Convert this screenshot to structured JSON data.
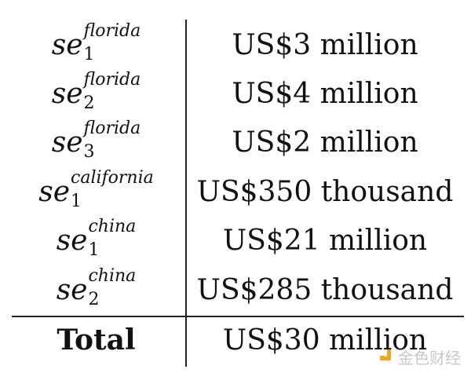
{
  "rows": [
    {
      "symbol": "se",
      "superscript": "florida",
      "subscript": "1",
      "value": "US$3 million"
    },
    {
      "symbol": "se",
      "superscript": "florida",
      "subscript": "2",
      "value": "US$4 million"
    },
    {
      "symbol": "se",
      "superscript": "florida",
      "subscript": "3",
      "value": "US$2 million"
    },
    {
      "symbol": "se",
      "superscript": "california",
      "subscript": "1",
      "value": "US$350 thousand"
    },
    {
      "symbol": "se",
      "superscript": "china",
      "subscript": "1",
      "value": "US$21 million"
    },
    {
      "symbol": "se",
      "superscript": "china",
      "subscript": "2",
      "value": "US$285 thousand"
    }
  ],
  "total": {
    "label": "Total",
    "value": "US$30 million"
  },
  "watermark": {
    "text": "金色财经",
    "color": "#f0a818"
  }
}
